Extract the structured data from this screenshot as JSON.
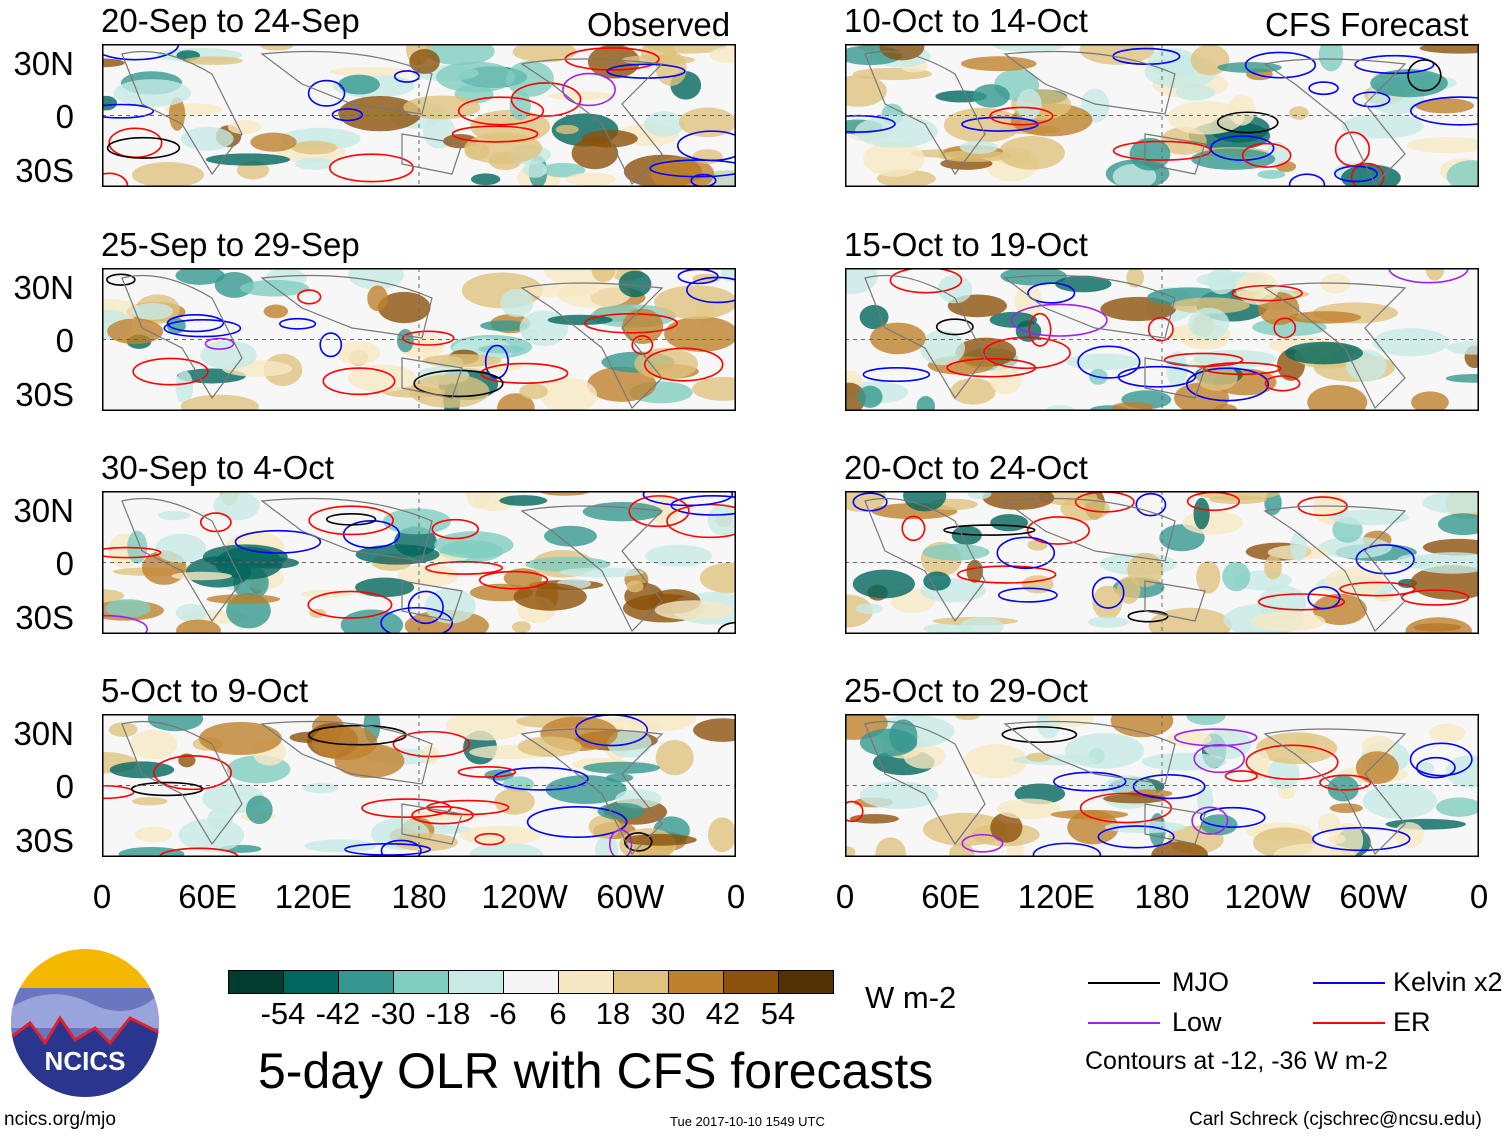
{
  "headers": {
    "observed": "Observed",
    "forecast": "CFS Forecast"
  },
  "panels_observed": [
    "20-Sep to 24-Sep",
    "25-Sep to 29-Sep",
    "30-Sep to 4-Oct",
    "5-Oct to 9-Oct"
  ],
  "panels_forecast": [
    "10-Oct to 14-Oct",
    "15-Oct to 19-Oct",
    "20-Oct to 24-Oct",
    "25-Oct to 29-Oct"
  ],
  "lat_labels": [
    "30N",
    "0",
    "30S"
  ],
  "lon_labels": [
    "0",
    "60E",
    "120E",
    "180",
    "120W",
    "60W",
    "0"
  ],
  "colorbar": {
    "labels": [
      "-54",
      "-42",
      "-30",
      "-18",
      "-6",
      "6",
      "18",
      "30",
      "42",
      "54"
    ],
    "colors": [
      "#003c30",
      "#01665e",
      "#35978f",
      "#80cdc1",
      "#c7eae5",
      "#f5f5f5",
      "#f6e8c3",
      "#dfc27d",
      "#bf812d",
      "#8c510a",
      "#543005"
    ],
    "units": "W m-2"
  },
  "legend": {
    "items": [
      {
        "label": "MJO",
        "color": "#000000"
      },
      {
        "label": "Kelvin x2",
        "color": "#0000ff"
      },
      {
        "label": "Low",
        "color": "#a020f0"
      },
      {
        "label": "ER",
        "color": "#ff0000"
      }
    ],
    "note": "Contours at -12, -36 W m-2"
  },
  "logo_text": "NCICS",
  "title": "5-day OLR with CFS forecasts",
  "footer": {
    "left": "ncics.org/mjo",
    "center": "Tue 2017-10-10 1549 UTC",
    "right": "Carl Schreck (cjschrec@ncsu.edu)"
  }
}
